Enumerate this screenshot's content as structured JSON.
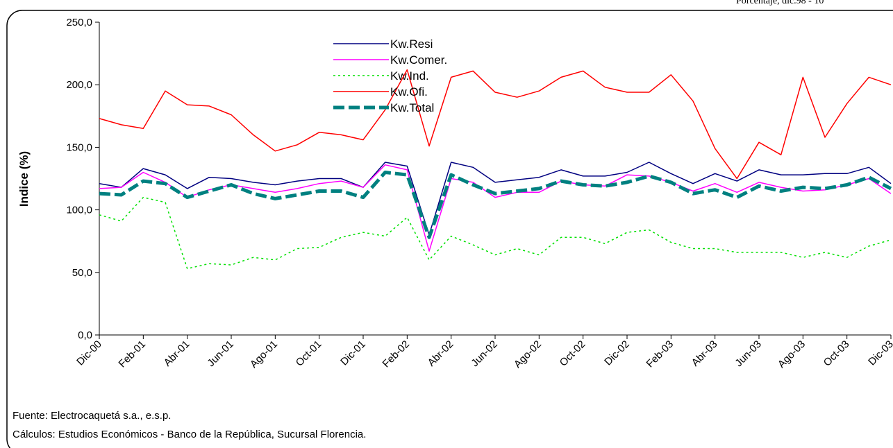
{
  "chart_data": {
    "type": "line",
    "corner_note": "Porcentaje, dic.98 - 10",
    "y_label": "Indice (%)",
    "source": "Fuente: Electrocaquetá s.a., e.s.p.",
    "note": "Cálculos:  Estudios Económicos - Banco de la República, Sucursal Florencia.",
    "categories": [
      "Dic-00",
      null,
      "Feb-01",
      null,
      "Abr-01",
      null,
      "Jun-01",
      null,
      "Ago-01",
      null,
      "Oct-01",
      null,
      "Dic-01",
      null,
      "Feb-02",
      null,
      "Abr-02",
      null,
      "Jun-02",
      null,
      "Ago-02",
      null,
      "Oct-02",
      null,
      "Dic-02",
      null,
      "Feb-03",
      null,
      "Abr-03",
      null,
      "Jun-03",
      null,
      "Ago-03",
      null,
      "Oct-03",
      null,
      "Dic-03"
    ],
    "series": [
      {
        "name": "Kw.Resi",
        "color": "#000080",
        "style": "solid",
        "values": [
          121,
          118,
          133,
          128,
          117,
          126,
          125,
          122,
          120,
          123,
          125,
          125,
          118,
          138,
          135,
          80,
          138,
          134,
          122,
          124,
          126,
          132,
          127,
          127,
          130,
          138,
          129,
          121,
          129,
          123,
          132,
          128,
          128,
          129,
          129,
          134,
          121
        ]
      },
      {
        "name": "Kw.Comer.",
        "color": "#ff00ff",
        "style": "solid",
        "values": [
          117,
          118,
          130,
          122,
          110,
          116,
          120,
          117,
          114,
          117,
          121,
          123,
          118,
          136,
          132,
          67,
          125,
          122,
          110,
          114,
          114,
          123,
          120,
          119,
          128,
          127,
          122,
          115,
          121,
          114,
          122,
          118,
          115,
          116,
          120,
          125,
          113
        ]
      },
      {
        "name": "Kw.Ind.",
        "color": "#00e000",
        "style": "dotted",
        "values": [
          96,
          91,
          110,
          106,
          53,
          57,
          56,
          62,
          60,
          69,
          70,
          78,
          82,
          79,
          94,
          60,
          79,
          72,
          64,
          69,
          64,
          78,
          78,
          73,
          82,
          84,
          74,
          69,
          69,
          66,
          66,
          66,
          62,
          66,
          62,
          71,
          76
        ]
      },
      {
        "name": "Kw.Ofi.",
        "color": "#ff0000",
        "style": "solid",
        "values": [
          173,
          168,
          165,
          195,
          184,
          183,
          176,
          160,
          147,
          152,
          162,
          160,
          156,
          180,
          212,
          151,
          206,
          211,
          194,
          190,
          195,
          206,
          211,
          198,
          194,
          194,
          208,
          187,
          149,
          125,
          154,
          144,
          206,
          158,
          185,
          206,
          200
        ]
      },
      {
        "name": "Kw.Total",
        "color": "#008080",
        "style": "dashed-thick",
        "values": [
          113,
          112,
          123,
          121,
          110,
          115,
          120,
          113,
          109,
          112,
          115,
          115,
          110,
          130,
          128,
          78,
          128,
          120,
          113,
          115,
          117,
          123,
          120,
          119,
          122,
          127,
          122,
          113,
          116,
          110,
          119,
          115,
          118,
          117,
          120,
          126,
          117
        ]
      }
    ],
    "ylim": [
      0,
      250
    ],
    "yticks": [
      {
        "value": 0,
        "label": "0,0"
      },
      {
        "value": 50,
        "label": "50,0"
      },
      {
        "value": 100,
        "label": "100,0"
      },
      {
        "value": 150,
        "label": "150,0"
      },
      {
        "value": 200,
        "label": "200,0"
      },
      {
        "value": 250,
        "label": "250,0"
      }
    ],
    "grid": false,
    "legend": "top"
  }
}
